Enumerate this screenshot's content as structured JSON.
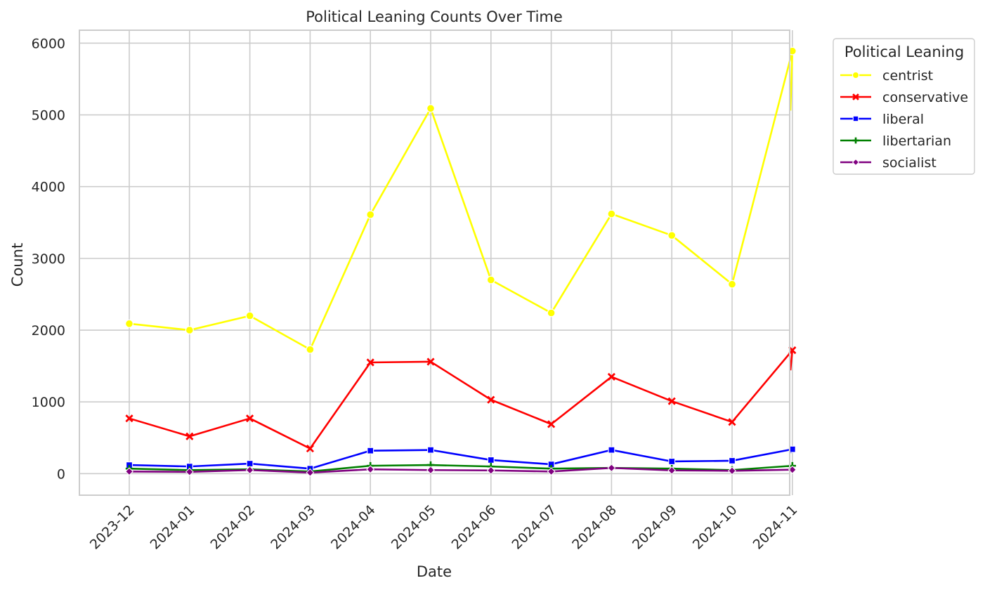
{
  "chart_data": {
    "type": "line",
    "title": "Political Leaning Counts Over Time",
    "xlabel": "Date",
    "ylabel": "Count",
    "categories": [
      "2023-12",
      "2024-01",
      "2024-02",
      "2024-03",
      "2024-04",
      "2024-05",
      "2024-06",
      "2024-07",
      "2024-08",
      "2024-09",
      "2024-10",
      "2024-11"
    ],
    "ylim": [
      -300,
      6180
    ],
    "yticks": [
      0,
      1000,
      2000,
      3000,
      4000,
      5000,
      6000
    ],
    "grid": true,
    "legend": {
      "title": "Political Leaning",
      "placement": "outside-top-right"
    },
    "series": [
      {
        "name": "centrist",
        "color": "#ffff00",
        "marker": "circle",
        "values": [
          2090,
          2000,
          2200,
          1730,
          3610,
          5090,
          2700,
          2240,
          3620,
          3320,
          2640,
          5890
        ],
        "trailing_value": 5060
      },
      {
        "name": "conservative",
        "color": "#ff0000",
        "marker": "x",
        "values": [
          770,
          520,
          770,
          350,
          1550,
          1560,
          1030,
          690,
          1350,
          1010,
          720,
          1720
        ],
        "trailing_value": 1440
      },
      {
        "name": "liberal",
        "color": "#0000ff",
        "marker": "square",
        "values": [
          120,
          100,
          140,
          70,
          320,
          330,
          190,
          130,
          330,
          170,
          180,
          340
        ],
        "trailing_value": 290
      },
      {
        "name": "libertarian",
        "color": "#008000",
        "marker": "plus",
        "values": [
          70,
          50,
          60,
          30,
          110,
          120,
          100,
          70,
          80,
          70,
          50,
          110
        ],
        "trailing_value": 100
      },
      {
        "name": "socialist",
        "color": "#800080",
        "marker": "diamond",
        "values": [
          30,
          25,
          50,
          15,
          60,
          50,
          45,
          30,
          80,
          45,
          40,
          55
        ],
        "trailing_value": 55
      }
    ]
  }
}
